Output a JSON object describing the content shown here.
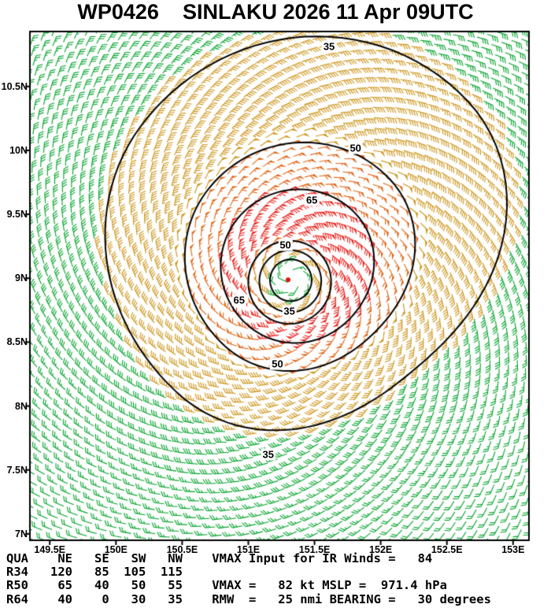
{
  "title": "WP0426    SINLAKU 2026 11 Apr 09UTC",
  "footer": {
    "lines": [
      "QUA    NE   SE   SW   NW    VMAX Input for IR Winds =   84",
      "R34   120   85  105  115",
      "R50    65   40   50   55    VMAX =   82 kt MSLP =  971.4 hPa",
      "R64    40    0   30   35    RMW  =   25 nmi BEARING =   30 degrees"
    ]
  },
  "chart_data": {
    "type": "wind-barb-map",
    "title": "WP0426 SINLAKU 2026 11 Apr 09UTC",
    "storm_id": "WP0426",
    "storm_name": "SINLAKU",
    "valid_time": "2026 11 Apr 09UTC",
    "units": {
      "wind": "kt",
      "radii": "nmi",
      "pressure": "hPa",
      "bearing": "degrees"
    },
    "lon_range": [
      149.35,
      153.12
    ],
    "lat_range": [
      6.95,
      10.93
    ],
    "lon_ticks": [
      {
        "value": 149.5,
        "label": "149.5E"
      },
      {
        "value": 150.0,
        "label": "150E"
      },
      {
        "value": 150.5,
        "label": "150.5E"
      },
      {
        "value": 151.0,
        "label": "151E"
      },
      {
        "value": 151.5,
        "label": "151.5E"
      },
      {
        "value": 152.0,
        "label": "152E"
      },
      {
        "value": 152.5,
        "label": "152.5E"
      },
      {
        "value": 153.0,
        "label": "153E"
      }
    ],
    "lat_ticks": [
      {
        "value": 7.0,
        "label": "7N"
      },
      {
        "value": 7.5,
        "label": "7.5N"
      },
      {
        "value": 8.0,
        "label": "8N"
      },
      {
        "value": 8.5,
        "label": "8.5N"
      },
      {
        "value": 9.0,
        "label": "9N"
      },
      {
        "value": 9.5,
        "label": "9.5N"
      },
      {
        "value": 10.0,
        "label": "10N"
      },
      {
        "value": 10.5,
        "label": "10.5N"
      }
    ],
    "storm": {
      "center_lon": 151.33,
      "center_lat": 9.0,
      "vmax_kt": 82,
      "vmax_ir_input_kt": 84,
      "mslp_hpa": 971.4,
      "rmw_nmi": 25,
      "bearing_deg": 30,
      "wind_radii_nmi": {
        "quadrants": [
          "NE",
          "SE",
          "SW",
          "NW"
        ],
        "R34": [
          120,
          85,
          105,
          115
        ],
        "R50": [
          65,
          40,
          50,
          55
        ],
        "R64": [
          40,
          0,
          30,
          35
        ]
      }
    },
    "contour_levels_kt": [
      35,
      50,
      65
    ],
    "contour_labels": [
      {
        "text": "35",
        "lon": 151.61,
        "lat": 10.81
      },
      {
        "text": "50",
        "lon": 151.81,
        "lat": 10.02
      },
      {
        "text": "65",
        "lon": 151.48,
        "lat": 9.61
      },
      {
        "text": "50",
        "lon": 151.28,
        "lat": 9.26
      },
      {
        "text": "65",
        "lon": 150.93,
        "lat": 8.83
      },
      {
        "text": "35",
        "lon": 151.31,
        "lat": 8.74
      },
      {
        "text": "50",
        "lon": 151.22,
        "lat": 8.33
      },
      {
        "text": "35",
        "lon": 151.15,
        "lat": 7.62
      }
    ],
    "speed_bins_kt": [
      {
        "min": 0,
        "max": 34,
        "color": "#00a32a"
      },
      {
        "min": 34,
        "max": 50,
        "color": "#cc9418"
      },
      {
        "min": 50,
        "max": 64,
        "color": "#e0671a"
      },
      {
        "min": 64,
        "max": 999,
        "color": "#e8231d"
      }
    ],
    "contour_color": "#000000",
    "center_marker_color": "#dd1111"
  }
}
